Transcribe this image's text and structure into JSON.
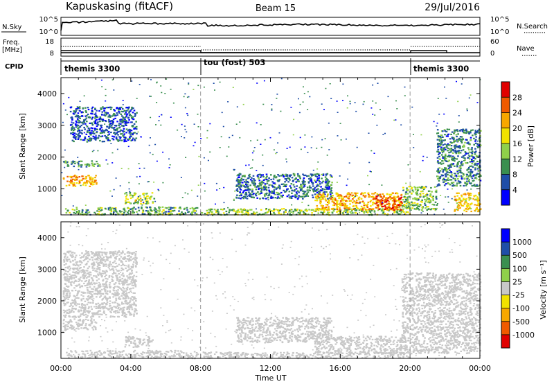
{
  "header": {
    "station": "Kapuskasing (fitACF)",
    "beam": "Beam 15",
    "date": "29/Jul/2016"
  },
  "top_panels": {
    "nsky_label": "N.Sky",
    "nsky_ticks": [
      "10^5",
      "10^0"
    ],
    "nsearch_label": "N.Search",
    "nsearch_ticks": [
      "10^5",
      "10^0"
    ],
    "freq_label": "Freq.",
    "freq_unit": "[MHz]",
    "freq_ticks": [
      "18",
      "8"
    ],
    "nave_label": "Nave",
    "nave_ticks": [
      "60",
      "0"
    ],
    "cpid_label": "CPID",
    "cpid_segments": [
      {
        "label": "themis 3300",
        "start_hour": 0,
        "end_hour": 8
      },
      {
        "label": "tou (fost) 503",
        "start_hour": 8,
        "end_hour": 20
      },
      {
        "label": "themis 3300",
        "start_hour": 20,
        "end_hour": 24
      }
    ]
  },
  "chart_data": [
    {
      "type": "heatmap",
      "title": "",
      "xlabel": "",
      "ylabel": "Slant Range [km]",
      "xlim": [
        0,
        24
      ],
      "ylim": [
        180,
        4500
      ],
      "yticks": [
        1000,
        2000,
        3000,
        4000
      ],
      "colorbar": {
        "label": "Power [dB]",
        "ticks": [
          "28",
          "24",
          "20",
          "16",
          "12",
          "8",
          "4"
        ],
        "range": [
          0,
          30
        ],
        "colors": [
          "#0000ff",
          "#1f4ea8",
          "#3a8f4f",
          "#8fd04a",
          "#f2e200",
          "#f7a700",
          "#f05a00",
          "#e00000"
        ]
      },
      "regions": [
        {
          "t0": 0.1,
          "t1": 2.0,
          "r0": 1100,
          "r1": 1450,
          "value": 20
        },
        {
          "t0": 0.1,
          "t1": 2.2,
          "r0": 1700,
          "r1": 1900,
          "value": 10
        },
        {
          "t0": 0.5,
          "t1": 4.3,
          "r0": 2500,
          "r1": 3600,
          "value": 6
        },
        {
          "t0": 3.6,
          "t1": 5.3,
          "r0": 550,
          "r1": 900,
          "value": 14
        },
        {
          "t0": 0.2,
          "t1": 7.8,
          "r0": 200,
          "r1": 450,
          "value": 11
        },
        {
          "t0": 8.0,
          "t1": 20.0,
          "r0": 200,
          "r1": 400,
          "value": 13
        },
        {
          "t0": 10.0,
          "t1": 15.5,
          "r0": 700,
          "r1": 1500,
          "value": 7
        },
        {
          "t0": 14.5,
          "t1": 19.5,
          "r0": 350,
          "r1": 900,
          "value": 20
        },
        {
          "t0": 18.0,
          "t1": 19.5,
          "r0": 350,
          "r1": 800,
          "value": 26
        },
        {
          "t0": 19.5,
          "t1": 21.5,
          "r0": 350,
          "r1": 1100,
          "value": 12
        },
        {
          "t0": 21.5,
          "t1": 24.0,
          "r0": 1100,
          "r1": 2900,
          "value": 8
        },
        {
          "t0": 22.5,
          "t1": 24.0,
          "r0": 300,
          "r1": 900,
          "value": 18
        }
      ]
    },
    {
      "type": "heatmap",
      "title": "",
      "xlabel": "Time UT",
      "ylabel": "Slant Range [km]",
      "xlim": [
        0,
        24
      ],
      "ylim": [
        180,
        4500
      ],
      "xticks": [
        "00:00",
        "04:00",
        "08:00",
        "12:00",
        "16:00",
        "20:00",
        "00:00"
      ],
      "yticks": [
        1000,
        2000,
        3000,
        4000
      ],
      "colorbar": {
        "label": "Velocity [m s⁻¹]",
        "ticks": [
          "1000",
          "500",
          "100",
          "25",
          "-25",
          "-100",
          "-500",
          "-1000"
        ],
        "range": [
          -1000,
          1000
        ],
        "colors": [
          "#e00000",
          "#f05a00",
          "#f7a700",
          "#f2e200",
          "#c8c8c8",
          "#8fd04a",
          "#3a8f4f",
          "#1f4ea8",
          "#0000ff"
        ]
      },
      "regions": [
        {
          "t0": 0.1,
          "t1": 2.0,
          "r0": 1100,
          "r1": 1450,
          "value": 0
        },
        {
          "t0": 0.1,
          "t1": 4.3,
          "r0": 1500,
          "r1": 3600,
          "value": 0
        },
        {
          "t0": 3.6,
          "t1": 5.3,
          "r0": 550,
          "r1": 900,
          "value": 60
        },
        {
          "t0": 0.2,
          "t1": 7.8,
          "r0": 200,
          "r1": 450,
          "value": 40
        },
        {
          "t0": 8.0,
          "t1": 20.0,
          "r0": 200,
          "r1": 400,
          "value": -60
        },
        {
          "t0": 10.0,
          "t1": 15.5,
          "r0": 700,
          "r1": 1500,
          "value": 0
        },
        {
          "t0": 14.5,
          "t1": 19.5,
          "r0": 350,
          "r1": 900,
          "value": 0
        },
        {
          "t0": 19.5,
          "t1": 24.0,
          "r0": 350,
          "r1": 2900,
          "value": 0
        }
      ]
    }
  ]
}
